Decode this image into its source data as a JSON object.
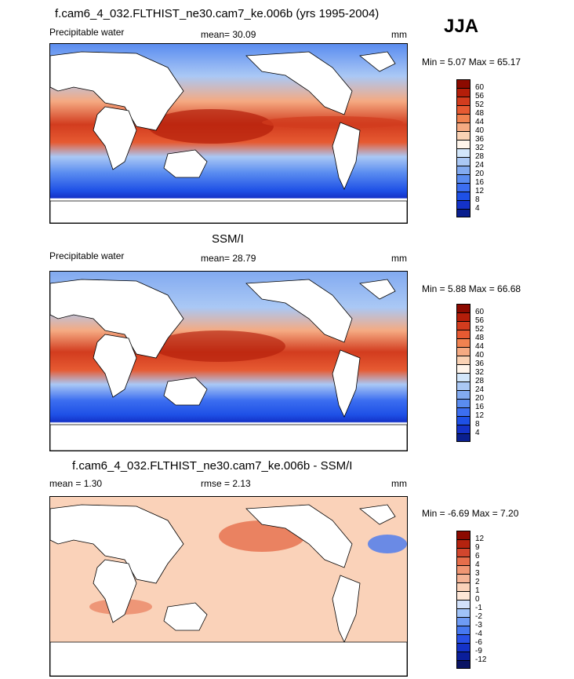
{
  "season": "JJA",
  "panels": [
    {
      "title": "f.cam6_4_032.FLTHIST_ne30.cam7_ke.006b (yrs 1995-2004)",
      "left_label": "Precipitable water",
      "center_label": "mean=  30.09",
      "units": "mm",
      "minmax": "Min =  5.07 Max = 65.17",
      "colorbar_labels": [
        "60",
        "56",
        "52",
        "48",
        "44",
        "40",
        "36",
        "32",
        "28",
        "24",
        "20",
        "16",
        "12",
        "8",
        "4"
      ],
      "colors": [
        "#0a1f8f",
        "#1432c8",
        "#1e50e6",
        "#3c6ef0",
        "#5a8cf0",
        "#82aaf0",
        "#aac8f5",
        "#d2e6fa",
        "#fff5eb",
        "#fad2b4",
        "#f5aa82",
        "#f08250",
        "#e65a32",
        "#d23c1e",
        "#b41e0a",
        "#8c0a00"
      ],
      "chart_data": {
        "type": "heatmap",
        "title": "f.cam6_4_032.FLTHIST_ne30.cam7_ke.006b (yrs 1995-2004)",
        "variable": "Precipitable water",
        "units": "mm",
        "mean": 30.09,
        "min": 5.07,
        "max": 65.17,
        "levels": [
          4,
          8,
          12,
          16,
          20,
          24,
          28,
          32,
          36,
          40,
          44,
          48,
          52,
          56,
          60
        ]
      }
    },
    {
      "title": "SSM/I",
      "left_label": "Precipitable water",
      "center_label": "mean=  28.79",
      "units": "mm",
      "minmax": "Min =  5.88 Max = 66.68",
      "colorbar_labels": [
        "60",
        "56",
        "52",
        "48",
        "44",
        "40",
        "36",
        "32",
        "28",
        "24",
        "20",
        "16",
        "12",
        "8",
        "4"
      ],
      "colors": [
        "#0a1f8f",
        "#1432c8",
        "#1e50e6",
        "#3c6ef0",
        "#5a8cf0",
        "#82aaf0",
        "#aac8f5",
        "#d2e6fa",
        "#fff5eb",
        "#fad2b4",
        "#f5aa82",
        "#f08250",
        "#e65a32",
        "#d23c1e",
        "#b41e0a",
        "#8c0a00"
      ],
      "chart_data": {
        "type": "heatmap",
        "title": "SSM/I",
        "variable": "Precipitable water",
        "units": "mm",
        "mean": 28.79,
        "min": 5.88,
        "max": 66.68,
        "levels": [
          4,
          8,
          12,
          16,
          20,
          24,
          28,
          32,
          36,
          40,
          44,
          48,
          52,
          56,
          60
        ]
      }
    },
    {
      "title": "f.cam6_4_032.FLTHIST_ne30.cam7_ke.006b - SSM/I",
      "left_label": "mean =   1.30",
      "center_label": "rmse =   2.13",
      "units": "mm",
      "minmax": "Min = -6.69 Max =  7.20",
      "colorbar_labels": [
        "12",
        "9",
        "6",
        "4",
        "3",
        "2",
        "1",
        "0",
        "-1",
        "-2",
        "-3",
        "-4",
        "-6",
        "-9",
        "-12"
      ],
      "colors": [
        "#0a1464",
        "#0a1e9b",
        "#1432c8",
        "#2850e6",
        "#4678f0",
        "#6e9bf5",
        "#a0c3f8",
        "#d2e1fa",
        "#fde6d6",
        "#fad2b9",
        "#f5b496",
        "#f09673",
        "#e66e4b",
        "#d2462d",
        "#b4230f",
        "#8c0a00"
      ],
      "chart_data": {
        "type": "heatmap",
        "title": "f.cam6_4_032.FLTHIST_ne30.cam7_ke.006b - SSM/I",
        "units": "mm",
        "mean": 1.3,
        "rmse": 2.13,
        "min": -6.69,
        "max": 7.2,
        "levels": [
          -12,
          -9,
          -6,
          -4,
          -3,
          -2,
          -1,
          0,
          1,
          2,
          3,
          4,
          6,
          9,
          12
        ]
      }
    }
  ]
}
